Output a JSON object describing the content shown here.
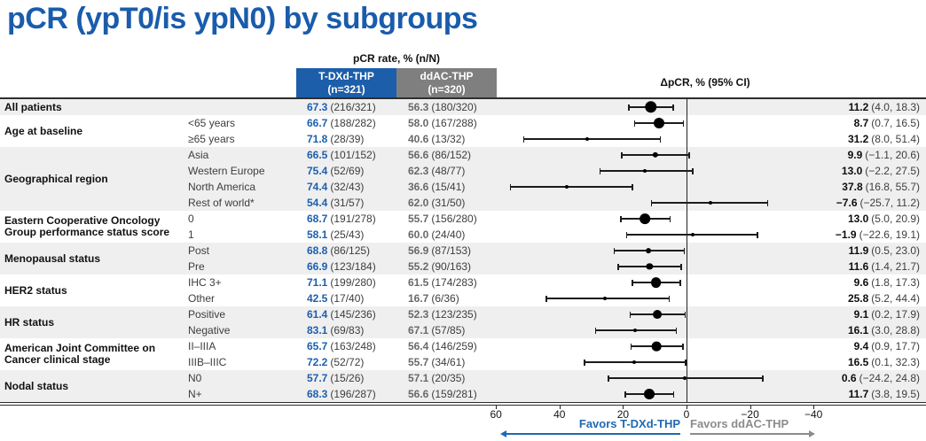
{
  "title": "pCR (ypT0/is ypN0) by subgroups",
  "header": {
    "pcr_rate_label": "pCR rate, % (n/N)",
    "arm1_name": "T-DXd-THP",
    "arm1_n": "(n=321)",
    "arm2_name": "ddAC-THP",
    "arm2_n": "(n=320)",
    "delta_label": "ΔpCR, % (95% CI)"
  },
  "colors": {
    "title_blue": "#1A5CAC",
    "arm1_blue": "#1C5EA9",
    "arm2_gray": "#7F7F7F",
    "value_blue": "#1C5FAE",
    "value_gray": "#696969",
    "favors_blue": "#2069B2",
    "favors_gray": "#8C8C8C",
    "zebra_gray": "#EFEFEF"
  },
  "axis": {
    "ticks": [
      {
        "v": 60,
        "label": "60"
      },
      {
        "v": 40,
        "label": "40"
      },
      {
        "v": 20,
        "label": "20"
      },
      {
        "v": 0,
        "label": "0"
      },
      {
        "v": -20,
        "label": "−20"
      },
      {
        "v": -40,
        "label": "−40"
      }
    ],
    "favors_left": "Favors T-DXd-THP",
    "favors_right": "Favors ddAC-THP",
    "reversed": true
  },
  "chart_data": {
    "type": "forest",
    "title": "pCR (ypT0/is ypN0) by subgroups",
    "xlabel": "ΔpCR, % (95% CI)",
    "xlim_left_to_right": [
      63,
      -47
    ],
    "zero_reference": 0,
    "groups": [
      {
        "label": "All patients",
        "rows": [
          {
            "sublabel": "",
            "tdxd_pct": "67.3",
            "tdxd_frac": "(216/321)",
            "ddac_pct": "56.3",
            "ddac_frac": "(180/320)",
            "est": 11.2,
            "lo": 4.0,
            "hi": 18.3,
            "est_text": "11.2",
            "ci_text": "(4.0, 18.3)"
          }
        ]
      },
      {
        "label": "Age at baseline",
        "rows": [
          {
            "sublabel": "<65 years",
            "tdxd_pct": "66.7",
            "tdxd_frac": "(188/282)",
            "ddac_pct": "58.0",
            "ddac_frac": "(167/288)",
            "est": 8.7,
            "lo": 0.7,
            "hi": 16.5,
            "est_text": "8.7",
            "ci_text": "(0.7, 16.5)"
          },
          {
            "sublabel": "≥65 years",
            "tdxd_pct": "71.8",
            "tdxd_frac": "(28/39)",
            "ddac_pct": "40.6",
            "ddac_frac": "(13/32)",
            "est": 31.2,
            "lo": 8.0,
            "hi": 51.4,
            "est_text": "31.2",
            "ci_text": "(8.0, 51.4)"
          }
        ]
      },
      {
        "label": "Geographical region",
        "rows": [
          {
            "sublabel": "Asia",
            "tdxd_pct": "66.5",
            "tdxd_frac": "(101/152)",
            "ddac_pct": "56.6",
            "ddac_frac": "(86/152)",
            "est": 9.9,
            "lo": -1.1,
            "hi": 20.6,
            "est_text": "9.9",
            "ci_text": "(−1.1, 20.6)"
          },
          {
            "sublabel": "Western Europe",
            "tdxd_pct": "75.4",
            "tdxd_frac": "(52/69)",
            "ddac_pct": "62.3",
            "ddac_frac": "(48/77)",
            "est": 13.0,
            "lo": -2.2,
            "hi": 27.5,
            "est_text": "13.0",
            "ci_text": "(−2.2, 27.5)"
          },
          {
            "sublabel": "North America",
            "tdxd_pct": "74.4",
            "tdxd_frac": "(32/43)",
            "ddac_pct": "36.6",
            "ddac_frac": "(15/41)",
            "est": 37.8,
            "lo": 16.8,
            "hi": 55.7,
            "est_text": "37.8",
            "ci_text": "(16.8, 55.7)"
          },
          {
            "sublabel": "Rest of world*",
            "tdxd_pct": "54.4",
            "tdxd_frac": "(31/57)",
            "ddac_pct": "62.0",
            "ddac_frac": "(31/50)",
            "est": -7.6,
            "lo": -25.7,
            "hi": 11.2,
            "est_text": "−7.6",
            "ci_text": "(−25.7, 11.2)"
          }
        ]
      },
      {
        "label": "Eastern Cooperative Oncology\nGroup performance status score",
        "rows": [
          {
            "sublabel": "0",
            "tdxd_pct": "68.7",
            "tdxd_frac": "(191/278)",
            "ddac_pct": "55.7",
            "ddac_frac": "(156/280)",
            "est": 13.0,
            "lo": 5.0,
            "hi": 20.9,
            "est_text": "13.0",
            "ci_text": "(5.0, 20.9)"
          },
          {
            "sublabel": "1",
            "tdxd_pct": "58.1",
            "tdxd_frac": "(25/43)",
            "ddac_pct": "60.0",
            "ddac_frac": "(24/40)",
            "est": -1.9,
            "lo": -22.6,
            "hi": 19.1,
            "est_text": "−1.9",
            "ci_text": "(−22.6, 19.1)"
          }
        ]
      },
      {
        "label": "Menopausal status",
        "rows": [
          {
            "sublabel": "Post",
            "tdxd_pct": "68.8",
            "tdxd_frac": "(86/125)",
            "ddac_pct": "56.9",
            "ddac_frac": "(87/153)",
            "est": 11.9,
            "lo": 0.5,
            "hi": 23.0,
            "est_text": "11.9",
            "ci_text": "(0.5, 23.0)"
          },
          {
            "sublabel": "Pre",
            "tdxd_pct": "66.9",
            "tdxd_frac": "(123/184)",
            "ddac_pct": "55.2",
            "ddac_frac": "(90/163)",
            "est": 11.6,
            "lo": 1.4,
            "hi": 21.7,
            "est_text": "11.6",
            "ci_text": "(1.4, 21.7)"
          }
        ]
      },
      {
        "label": "HER2 status",
        "rows": [
          {
            "sublabel": "IHC 3+",
            "tdxd_pct": "71.1",
            "tdxd_frac": "(199/280)",
            "ddac_pct": "61.5",
            "ddac_frac": "(174/283)",
            "est": 9.6,
            "lo": 1.8,
            "hi": 17.3,
            "est_text": "9.6",
            "ci_text": "(1.8, 17.3)"
          },
          {
            "sublabel": "Other",
            "tdxd_pct": "42.5",
            "tdxd_frac": "(17/40)",
            "ddac_pct": "16.7",
            "ddac_frac": "(6/36)",
            "est": 25.8,
            "lo": 5.2,
            "hi": 44.4,
            "est_text": "25.8",
            "ci_text": "(5.2, 44.4)"
          }
        ]
      },
      {
        "label": "HR status",
        "rows": [
          {
            "sublabel": "Positive",
            "tdxd_pct": "61.4",
            "tdxd_frac": "(145/236)",
            "ddac_pct": "52.3",
            "ddac_frac": "(123/235)",
            "est": 9.1,
            "lo": 0.2,
            "hi": 17.9,
            "est_text": "9.1",
            "ci_text": "(0.2, 17.9)"
          },
          {
            "sublabel": "Negative",
            "tdxd_pct": "83.1",
            "tdxd_frac": "(69/83)",
            "ddac_pct": "67.1",
            "ddac_frac": "(57/85)",
            "est": 16.1,
            "lo": 3.0,
            "hi": 28.8,
            "est_text": "16.1",
            "ci_text": "(3.0, 28.8)"
          }
        ]
      },
      {
        "label": "American Joint Committee on\nCancer clinical stage",
        "rows": [
          {
            "sublabel": "II–IIIA",
            "tdxd_pct": "65.7",
            "tdxd_frac": "(163/248)",
            "ddac_pct": "56.4",
            "ddac_frac": "(146/259)",
            "est": 9.4,
            "lo": 0.9,
            "hi": 17.7,
            "est_text": "9.4",
            "ci_text": "(0.9, 17.7)"
          },
          {
            "sublabel": "IIIB–IIIC",
            "tdxd_pct": "72.2",
            "tdxd_frac": "(52/72)",
            "ddac_pct": "55.7",
            "ddac_frac": "(34/61)",
            "est": 16.5,
            "lo": 0.1,
            "hi": 32.3,
            "est_text": "16.5",
            "ci_text": "(0.1, 32.3)"
          }
        ]
      },
      {
        "label": "Nodal status",
        "rows": [
          {
            "sublabel": "N0",
            "tdxd_pct": "57.7",
            "tdxd_frac": "(15/26)",
            "ddac_pct": "57.1",
            "ddac_frac": "(20/35)",
            "est": 0.6,
            "lo": -24.2,
            "hi": 24.8,
            "est_text": "0.6",
            "ci_text": "(−24.2, 24.8)"
          },
          {
            "sublabel": "N+",
            "tdxd_pct": "68.3",
            "tdxd_frac": "(196/287)",
            "ddac_pct": "56.6",
            "ddac_frac": "(159/281)",
            "est": 11.7,
            "lo": 3.8,
            "hi": 19.5,
            "est_text": "11.7",
            "ci_text": "(3.8, 19.5)"
          }
        ]
      }
    ]
  }
}
